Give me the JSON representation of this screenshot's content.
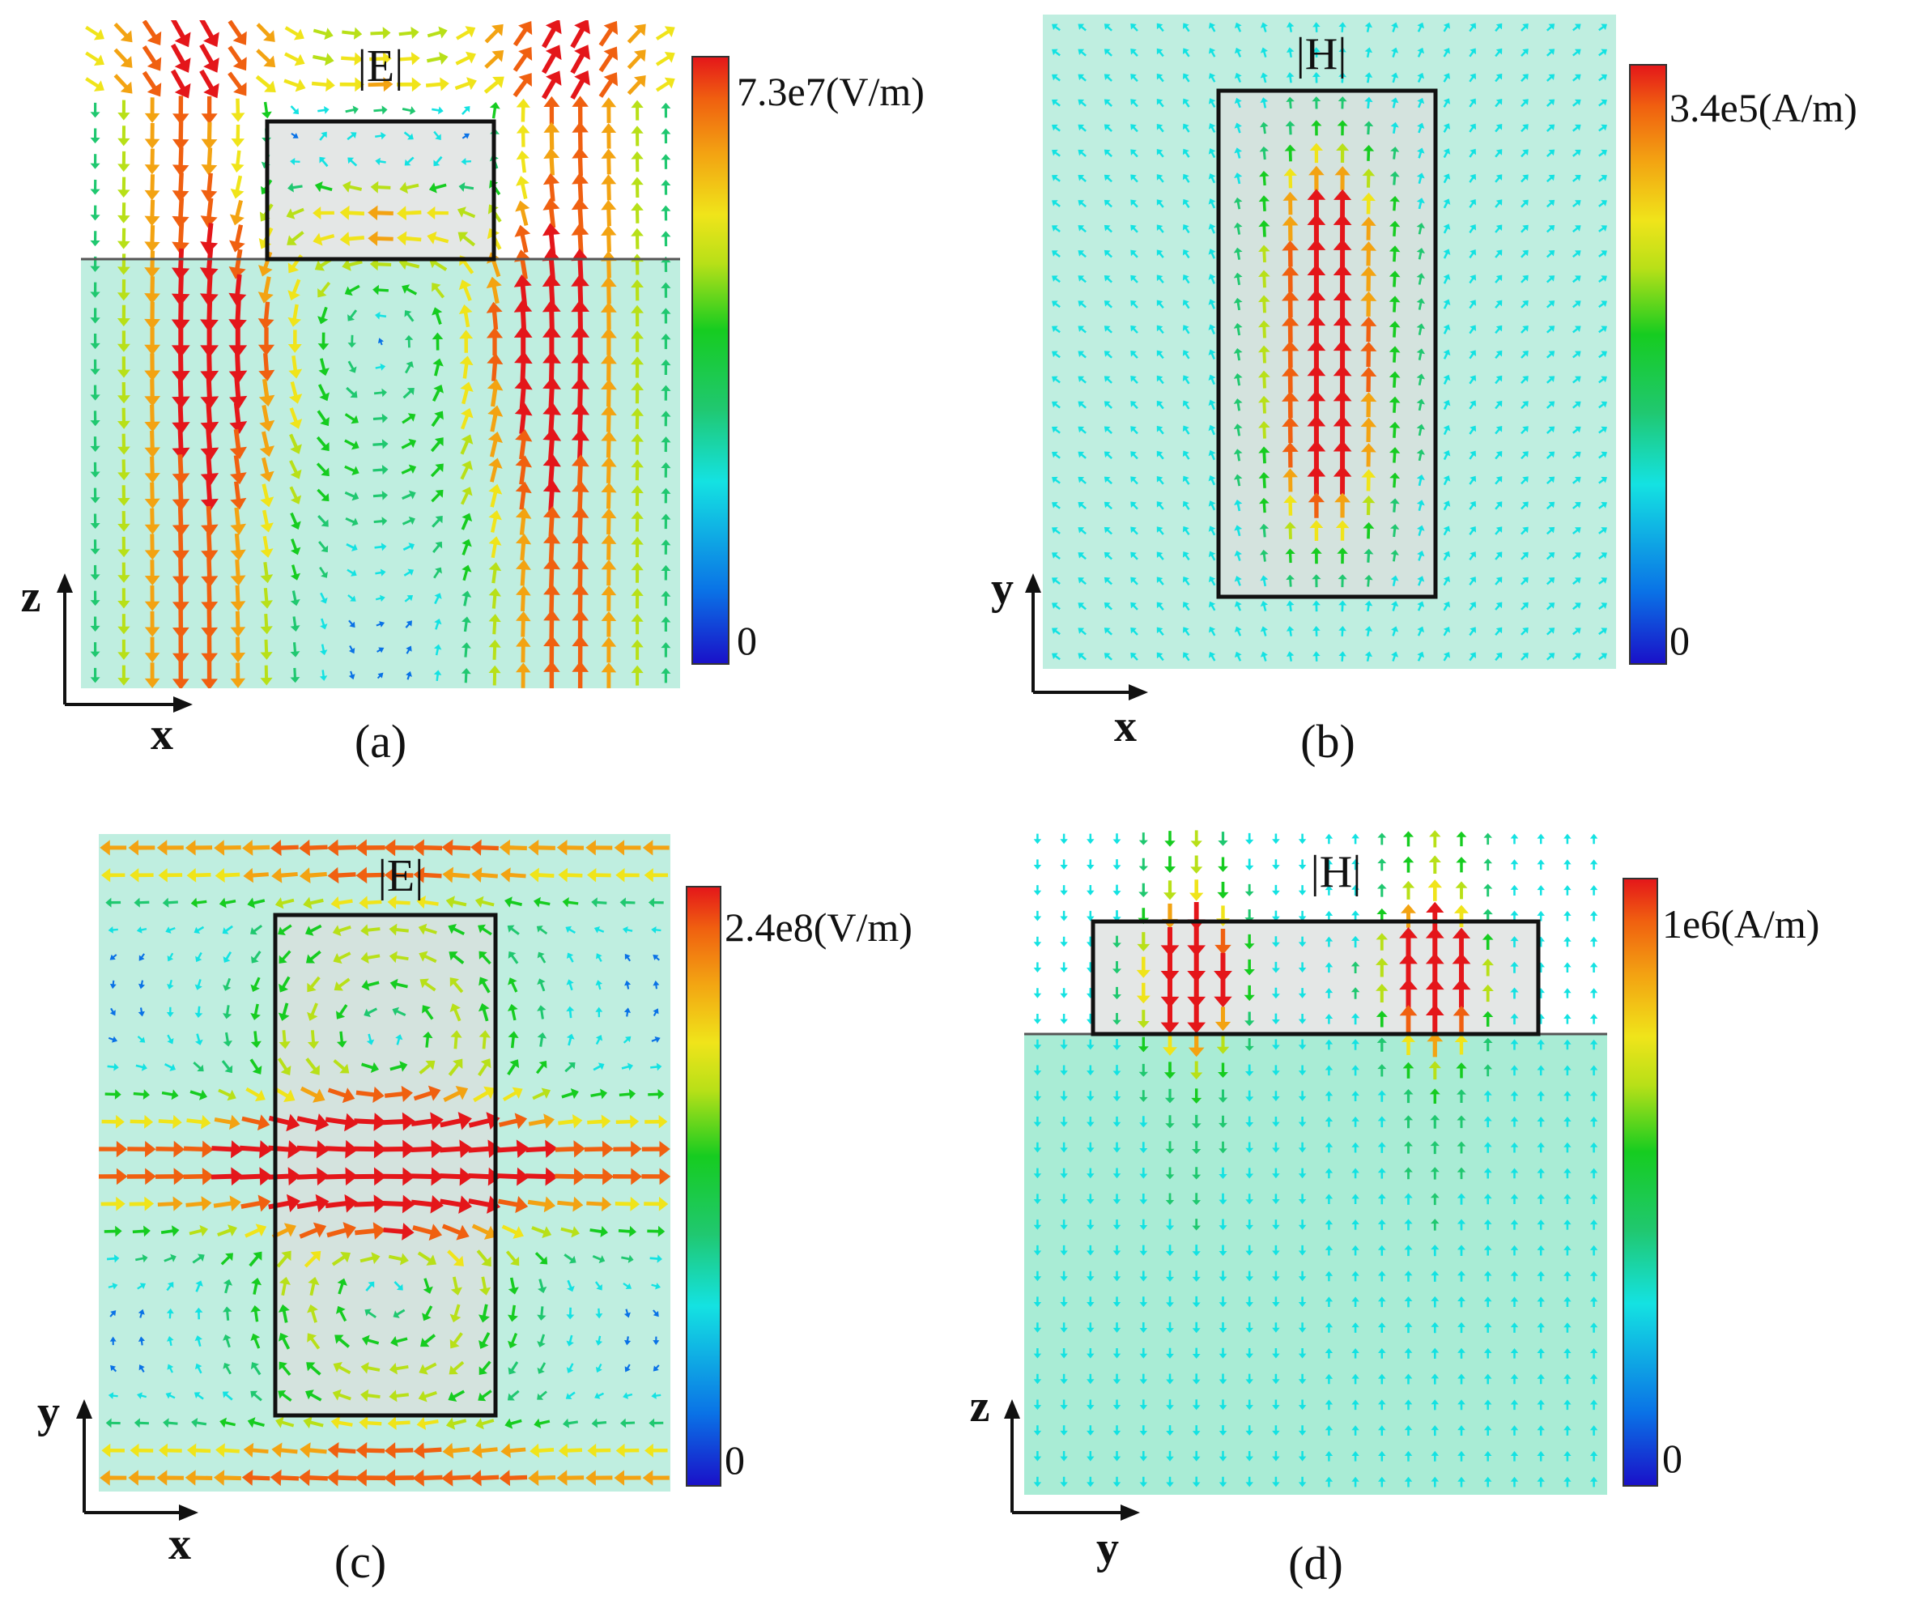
{
  "colors": {
    "substrate": "#bfeee0",
    "substrate_d": "#a9ecd5",
    "air": "#ffffff",
    "resonator": "#e4e7e6",
    "outline": "#111111",
    "colormap": [
      "#1a10c8",
      "#0a72e6",
      "#14e2e2",
      "#20c870",
      "#16cc20",
      "#b8e018",
      "#f0e41a",
      "#f3a312",
      "#f06010",
      "#e4161a"
    ]
  },
  "panels": [
    {
      "id": "a",
      "title": "|E|",
      "caption": "(a)",
      "colorbar": {
        "max_label": "7.3e7(V/m)",
        "min_label": "0"
      },
      "axes": {
        "horizontal": "x",
        "vertical": "z"
      },
      "view": "side",
      "field": "electric-vortex-xz",
      "arrow_icon": "field-arrow-icon"
    },
    {
      "id": "b",
      "title": "|H|",
      "caption": "(b)",
      "colorbar": {
        "max_label": "3.4e5(A/m)",
        "min_label": "0"
      },
      "axes": {
        "horizontal": "x",
        "vertical": "y"
      },
      "view": "top",
      "field": "magnetic-uniform-xy",
      "arrow_icon": "field-arrow-icon"
    },
    {
      "id": "c",
      "title": "|E|",
      "caption": "(c)",
      "colorbar": {
        "max_label": "2.4e8(V/m)",
        "min_label": "0"
      },
      "axes": {
        "horizontal": "x",
        "vertical": "y"
      },
      "view": "top",
      "field": "electric-double-vortex-xy",
      "arrow_icon": "field-arrow-icon"
    },
    {
      "id": "d",
      "title": "|H|",
      "caption": "(d)",
      "colorbar": {
        "max_label": "1e6(A/m)",
        "min_label": "0"
      },
      "axes": {
        "horizontal": "y",
        "vertical": "z"
      },
      "view": "side",
      "field": "magnetic-loop-yz",
      "arrow_icon": "field-arrow-icon"
    }
  ]
}
